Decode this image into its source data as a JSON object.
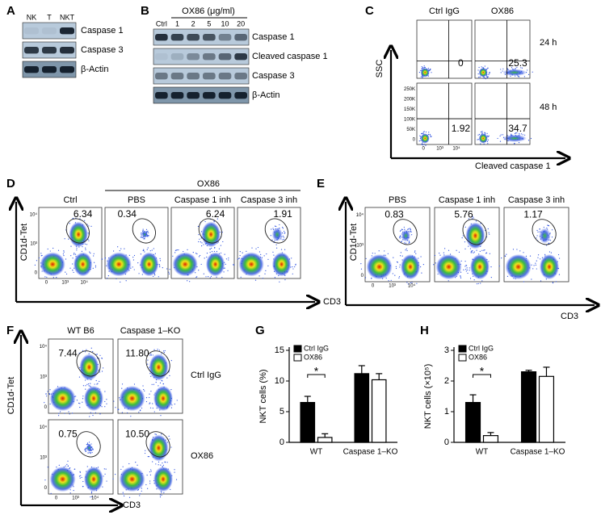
{
  "panels": {
    "A": {
      "label": "A",
      "lanes": [
        "NK",
        "T",
        "NKT"
      ],
      "bands": [
        "Caspase 1",
        "Caspase 3",
        "β-Actin"
      ]
    },
    "B": {
      "label": "B",
      "treatment": "OX86 (μg/ml)",
      "lanes": [
        "Ctrl",
        "1",
        "2",
        "5",
        "10",
        "20"
      ],
      "bands": [
        "Caspase 1",
        "Cleaved caspase 1",
        "Caspase 3",
        "β-Actin"
      ]
    },
    "C": {
      "label": "C",
      "columns": [
        "Ctrl IgG",
        "OX86"
      ],
      "rows": [
        "24 h",
        "48 h"
      ],
      "values": [
        [
          "0",
          "25.3"
        ],
        [
          "1.92",
          "34.7"
        ]
      ],
      "y_axis": "SSC",
      "x_axis": "Cleaved caspase 1",
      "yticks": [
        "0",
        "50K",
        "100K",
        "150K",
        "200K",
        "250K"
      ],
      "xticks": [
        "0",
        "10³",
        "10⁴"
      ]
    },
    "D": {
      "label": "D",
      "group": "OX86",
      "columns": [
        "Ctrl",
        "PBS",
        "Caspase 1 inh",
        "Caspase 3 inh"
      ],
      "values": [
        "6.34",
        "0.34",
        "6.24",
        "1.91"
      ],
      "y_axis": "CD1d-Tet",
      "x_axis": "CD3",
      "yticks": [
        "0",
        "10³",
        "10⁴"
      ],
      "xticks": [
        "0",
        "10³",
        "10⁴"
      ]
    },
    "E": {
      "label": "E",
      "columns": [
        "PBS",
        "Caspase 1 inh",
        "Caspase 3 inh"
      ],
      "values": [
        "0.83",
        "5.76",
        "1.17"
      ],
      "y_axis": "CD1d-Tet",
      "x_axis": "CD3",
      "yticks": [
        "0",
        "10³",
        "10⁴"
      ],
      "xticks": [
        "0",
        "10³",
        "10⁴"
      ]
    },
    "F": {
      "label": "F",
      "columns": [
        "WT B6",
        "Caspase 1–KO"
      ],
      "rows": [
        "Ctrl IgG",
        "OX86"
      ],
      "values": [
        [
          "7.44",
          "11.80"
        ],
        [
          "0.75",
          "10.50"
        ]
      ],
      "y_axis": "CD1d-Tet",
      "x_axis": "CD3",
      "yticks": [
        "0",
        "10³",
        "10⁴"
      ],
      "xticks": [
        "0",
        "10³",
        "10⁴"
      ]
    }
  },
  "chart_data": [
    {
      "type": "bar",
      "label": "G",
      "y_label": "NKT cells (%)",
      "categories": [
        "WT",
        "Caspase 1–KO"
      ],
      "series": [
        {
          "name": "Ctrl IgG",
          "color": "#000000",
          "values": [
            6.5,
            11.2
          ],
          "errors": [
            1.0,
            1.3
          ]
        },
        {
          "name": "OX86",
          "color": "#ffffff",
          "values": [
            0.8,
            10.2
          ],
          "errors": [
            0.6,
            1.0
          ]
        }
      ],
      "ylim": [
        0,
        15
      ],
      "yticks": [
        0,
        5,
        10,
        15
      ],
      "annotation": "*"
    },
    {
      "type": "bar",
      "label": "H",
      "y_label": "NKT cells (×10⁵)",
      "categories": [
        "WT",
        "Caspase 1–KO"
      ],
      "series": [
        {
          "name": "Ctrl IgG",
          "color": "#000000",
          "values": [
            1.3,
            2.3
          ],
          "errors": [
            0.25,
            0.05
          ]
        },
        {
          "name": "OX86",
          "color": "#ffffff",
          "values": [
            0.22,
            2.15
          ],
          "errors": [
            0.1,
            0.3
          ]
        }
      ],
      "ylim": [
        0,
        3
      ],
      "yticks": [
        0,
        1,
        2,
        3
      ],
      "annotation": "*"
    }
  ]
}
